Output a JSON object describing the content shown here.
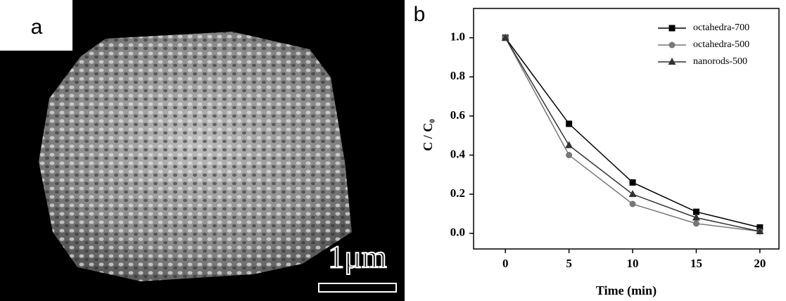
{
  "image_panel": {
    "label": "a",
    "scale_bar": "1μm"
  },
  "chart_data": {
    "type": "line",
    "panel_label": "b",
    "x_label": "Time (min)",
    "y_label": "C / C₀",
    "x": [
      0,
      5,
      10,
      15,
      20
    ],
    "series": [
      {
        "name": "octahedra-700",
        "color": "#000000",
        "marker": "square",
        "values": [
          1.0,
          0.56,
          0.26,
          0.11,
          0.03
        ]
      },
      {
        "name": "octahedra-500",
        "color": "#777777",
        "marker": "circle",
        "values": [
          1.0,
          0.4,
          0.15,
          0.05,
          0.01
        ]
      },
      {
        "name": "nanorods-500",
        "color": "#333333",
        "marker": "triangle",
        "values": [
          1.0,
          0.45,
          0.2,
          0.08,
          0.01
        ]
      }
    ],
    "xlim": [
      -2.5,
      21.5
    ],
    "xticks": [
      0,
      5,
      10,
      15,
      20
    ],
    "ylim": [
      -0.08,
      1.15
    ],
    "yticks": [
      {
        "value": 0,
        "label": "0.0"
      },
      0.2,
      0.4,
      0.6,
      0.8,
      {
        "value": 1,
        "label": "1.0"
      }
    ],
    "legend": "upper right",
    "grid": false
  }
}
